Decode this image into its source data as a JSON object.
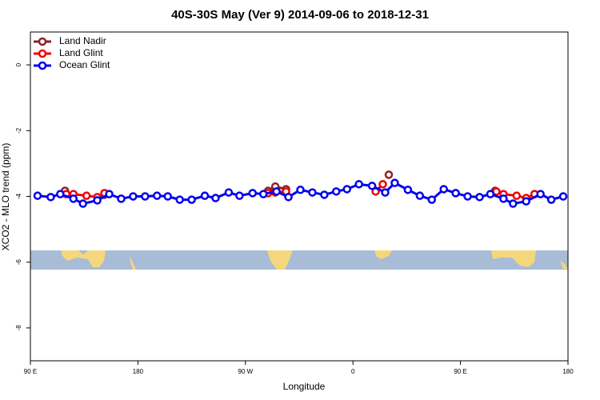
{
  "chart_data": {
    "type": "line",
    "title": "40S-30S May (Ver 9)   2014-09-06 to 2018-12-31",
    "x_label": "Longitude",
    "y_label": "XCO2 - MLO trend (ppm)",
    "xlim": [
      90,
      540
    ],
    "ylim": [
      -9,
      1
    ],
    "xticks": [
      {
        "value": 90,
        "label": "90 E"
      },
      {
        "value": 180,
        "label": "180"
      },
      {
        "value": 270,
        "label": "90 W"
      },
      {
        "value": 360,
        "label": "0"
      },
      {
        "value": 450,
        "label": "90 E"
      },
      {
        "value": 540,
        "label": "180"
      }
    ],
    "yticks": [
      0,
      -2,
      -4,
      -6,
      -8
    ],
    "legend": "top-left",
    "series": [
      {
        "name": "Land Nadir",
        "color": "#8b2323",
        "x": [
          119,
          null,
          152,
          null,
          289,
          295,
          304,
          null,
          390,
          null,
          479,
          null,
          512
        ],
        "values": [
          -3.83,
          null,
          -3.95,
          null,
          -3.83,
          -3.7,
          -3.78,
          null,
          -3.34,
          null,
          -3.83,
          null,
          -3.93
        ]
      },
      {
        "name": "Land Glint",
        "color": "#ee0000",
        "x": [
          120,
          126,
          137,
          146,
          152,
          null,
          289,
          295,
          304,
          null,
          379,
          385,
          null,
          480,
          486,
          497,
          505,
          512
        ],
        "values": [
          -3.93,
          -3.93,
          -3.98,
          -4.02,
          -3.9,
          null,
          -3.9,
          -3.88,
          -3.85,
          null,
          -3.85,
          -3.63,
          null,
          -3.85,
          -3.93,
          -3.98,
          -4.05,
          -3.93
        ]
      },
      {
        "name": "Ocean Glint",
        "color": "#0000ee",
        "x": [
          96,
          107,
          115,
          126,
          134,
          146,
          156,
          166,
          176,
          186,
          196,
          205,
          215,
          225,
          236,
          245,
          256,
          265,
          276,
          285,
          296,
          306,
          316,
          326,
          336,
          346,
          355,
          365,
          376,
          387,
          395,
          406,
          416,
          426,
          436,
          446,
          456,
          466,
          475,
          486,
          494,
          505,
          517,
          526,
          536
        ],
        "values": [
          -3.98,
          -4.02,
          -3.93,
          -4.07,
          -4.22,
          -4.12,
          -3.93,
          -4.07,
          -4.0,
          -4.0,
          -3.98,
          -4.0,
          -4.1,
          -4.1,
          -3.98,
          -4.05,
          -3.88,
          -3.98,
          -3.9,
          -3.93,
          -3.85,
          -4.02,
          -3.8,
          -3.88,
          -3.95,
          -3.85,
          -3.78,
          -3.63,
          -3.68,
          -3.88,
          -3.59,
          -3.8,
          -3.98,
          -4.1,
          -3.78,
          -3.9,
          -4.0,
          -4.02,
          -3.93,
          -4.07,
          -4.22,
          -4.15,
          -3.93,
          -4.1,
          -4.0
        ]
      }
    ]
  }
}
